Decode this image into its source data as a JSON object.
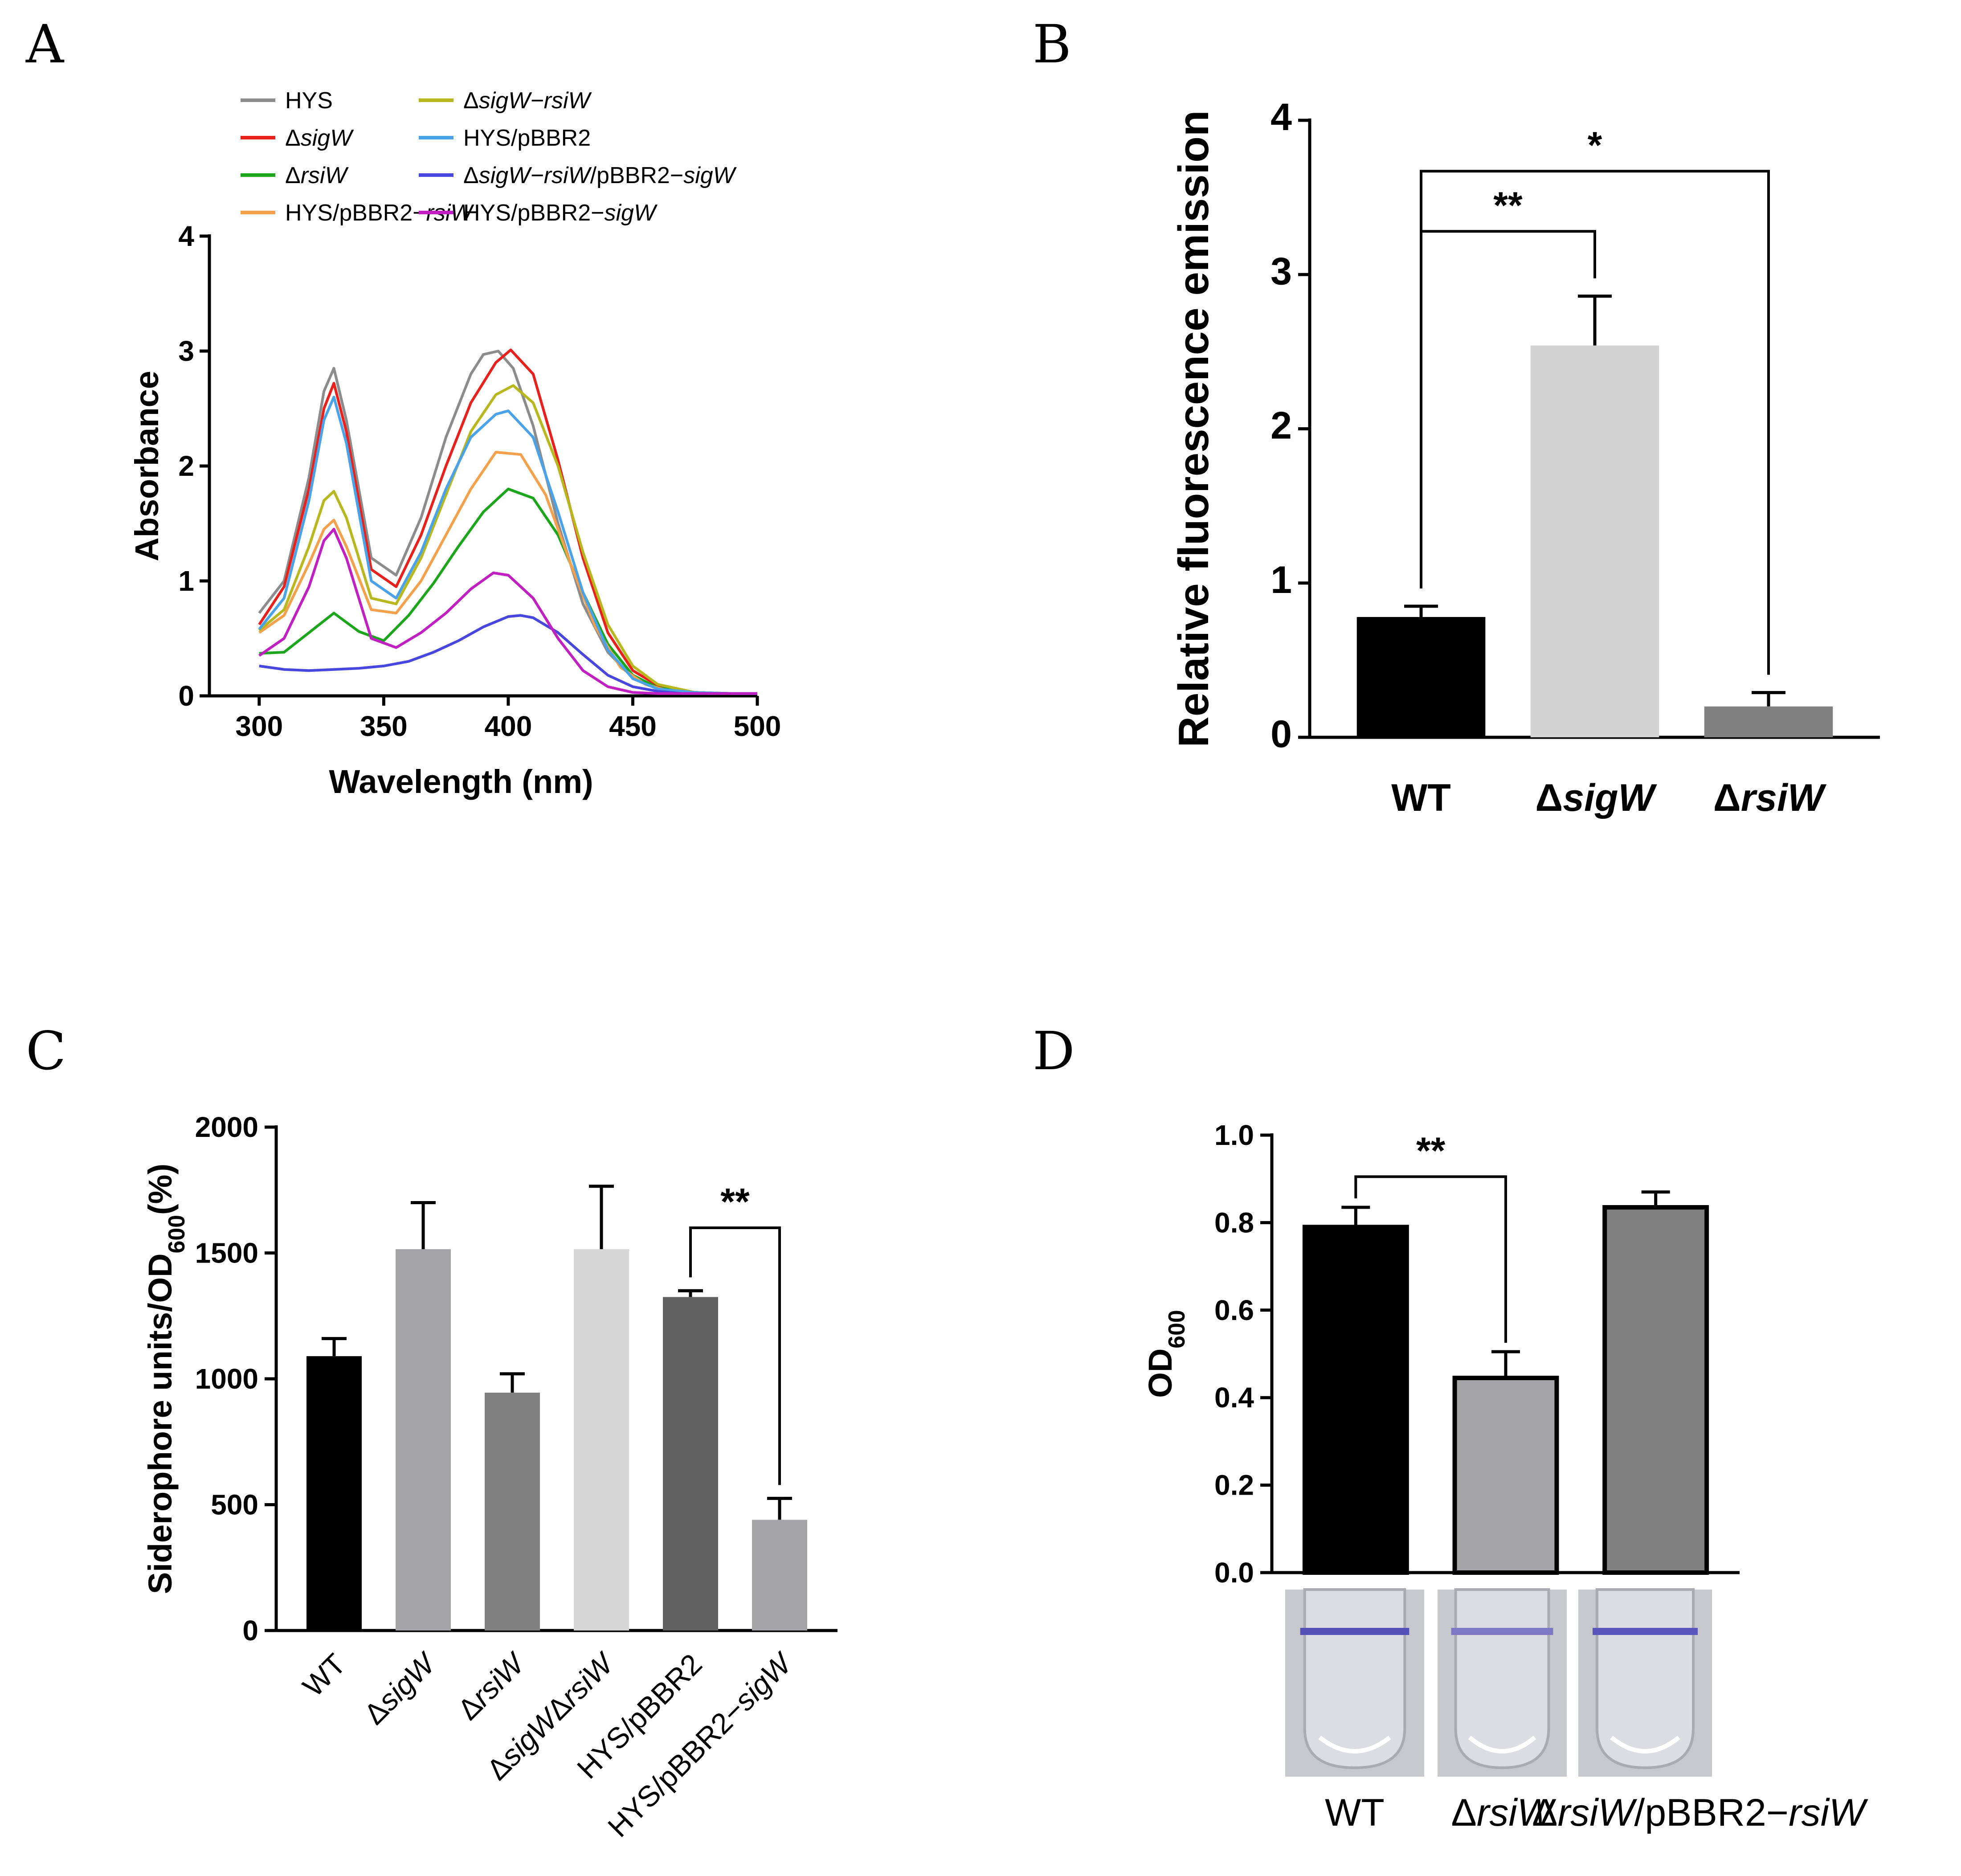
{
  "panels": {
    "A": {
      "label": "A"
    },
    "B": {
      "label": "B"
    },
    "C": {
      "label": "C"
    },
    "D": {
      "label": "D"
    }
  },
  "chart_data": [
    {
      "panel": "A",
      "type": "line",
      "title": "",
      "xlabel": "Wavelength (nm)",
      "ylabel": "Absorbance",
      "xlim": [
        280,
        500
      ],
      "ylim": [
        0,
        4
      ],
      "xticks": [
        300,
        350,
        400,
        450,
        500
      ],
      "yticks": [
        0,
        1,
        2,
        3,
        4
      ],
      "legend_position": "top",
      "series": [
        {
          "name": "HYS",
          "name_parts": [
            {
              "t": "HYS",
              "i": false
            }
          ],
          "color": "#8c8c8c",
          "x": [
            300,
            310,
            320,
            326,
            330,
            335,
            345,
            355,
            365,
            375,
            385,
            390,
            396,
            402,
            410,
            420,
            430,
            440,
            450,
            460,
            475,
            490,
            500
          ],
          "y": [
            0.72,
            1.0,
            1.9,
            2.65,
            2.85,
            2.4,
            1.2,
            1.05,
            1.55,
            2.25,
            2.8,
            2.97,
            3.0,
            2.85,
            2.35,
            1.5,
            0.8,
            0.38,
            0.16,
            0.07,
            0.03,
            0.02,
            0.02
          ]
        },
        {
          "name": "ΔsigW",
          "name_parts": [
            {
              "t": "Δ",
              "i": false
            },
            {
              "t": "sigW",
              "i": true
            }
          ],
          "color": "#e8211d",
          "x": [
            300,
            310,
            320,
            326,
            330,
            335,
            345,
            355,
            365,
            375,
            385,
            395,
            401,
            410,
            420,
            430,
            440,
            450,
            460,
            475,
            490,
            500
          ],
          "y": [
            0.62,
            0.95,
            1.8,
            2.5,
            2.72,
            2.3,
            1.1,
            0.95,
            1.4,
            2.0,
            2.55,
            2.9,
            3.01,
            2.8,
            2.05,
            1.2,
            0.55,
            0.22,
            0.09,
            0.03,
            0.02,
            0.02
          ]
        },
        {
          "name": "ΔrsiW",
          "name_parts": [
            {
              "t": "Δ",
              "i": false
            },
            {
              "t": "rsiW",
              "i": true
            }
          ],
          "color": "#1ba61b",
          "x": [
            300,
            310,
            320,
            330,
            340,
            350,
            360,
            370,
            380,
            390,
            400,
            410,
            420,
            430,
            440,
            450,
            460,
            475,
            490,
            500
          ],
          "y": [
            0.37,
            0.38,
            0.55,
            0.72,
            0.56,
            0.48,
            0.7,
            0.98,
            1.3,
            1.6,
            1.8,
            1.72,
            1.4,
            0.9,
            0.45,
            0.18,
            0.07,
            0.03,
            0.02,
            0.02
          ]
        },
        {
          "name": "HYS/pBBR2-rsiW",
          "name_parts": [
            {
              "t": "HYS/pBBR2−",
              "i": false
            },
            {
              "t": "rsiW",
              "i": true
            }
          ],
          "color": "#f5a04a",
          "x": [
            300,
            310,
            320,
            326,
            330,
            335,
            345,
            355,
            365,
            375,
            385,
            395,
            405,
            415,
            425,
            435,
            445,
            455,
            465,
            480,
            500
          ],
          "y": [
            0.55,
            0.7,
            1.15,
            1.45,
            1.53,
            1.3,
            0.75,
            0.72,
            1.0,
            1.4,
            1.8,
            2.12,
            2.1,
            1.75,
            1.15,
            0.6,
            0.25,
            0.1,
            0.04,
            0.02,
            0.02
          ]
        },
        {
          "name": "ΔsigW-rsiW",
          "name_parts": [
            {
              "t": "Δ",
              "i": false
            },
            {
              "t": "sigW−rsiW",
              "i": true
            }
          ],
          "color": "#b8b81e",
          "x": [
            300,
            310,
            320,
            326,
            330,
            335,
            345,
            355,
            365,
            375,
            385,
            395,
            402,
            410,
            420,
            430,
            440,
            450,
            460,
            475,
            490,
            500
          ],
          "y": [
            0.57,
            0.75,
            1.3,
            1.7,
            1.78,
            1.55,
            0.85,
            0.8,
            1.2,
            1.75,
            2.3,
            2.62,
            2.7,
            2.55,
            2.0,
            1.25,
            0.62,
            0.26,
            0.1,
            0.03,
            0.02,
            0.02
          ]
        },
        {
          "name": "HYS/pBBR2",
          "name_parts": [
            {
              "t": "HYS/pBBR2",
              "i": false
            }
          ],
          "color": "#4aa3e8",
          "x": [
            300,
            310,
            320,
            326,
            330,
            335,
            345,
            355,
            365,
            375,
            385,
            395,
            400,
            410,
            420,
            430,
            440,
            450,
            460,
            475,
            490,
            500
          ],
          "y": [
            0.58,
            0.85,
            1.7,
            2.4,
            2.6,
            2.2,
            1.0,
            0.85,
            1.25,
            1.8,
            2.25,
            2.45,
            2.48,
            2.25,
            1.6,
            0.9,
            0.4,
            0.15,
            0.06,
            0.03,
            0.02,
            0.02
          ]
        },
        {
          "name": "ΔsigW-rsiW/pBBR2-sigW",
          "name_parts": [
            {
              "t": "Δ",
              "i": false
            },
            {
              "t": "sigW−rsiW",
              "i": true
            },
            {
              "t": "/pBBR2−",
              "i": false
            },
            {
              "t": "sigW",
              "i": true
            }
          ],
          "color": "#4747e0",
          "x": [
            300,
            310,
            320,
            330,
            340,
            350,
            360,
            370,
            380,
            390,
            400,
            405,
            410,
            420,
            430,
            440,
            450,
            460,
            470,
            480,
            490,
            500
          ],
          "y": [
            0.26,
            0.23,
            0.22,
            0.23,
            0.24,
            0.26,
            0.3,
            0.38,
            0.48,
            0.6,
            0.69,
            0.7,
            0.68,
            0.55,
            0.36,
            0.18,
            0.08,
            0.04,
            0.02,
            0.02,
            0.02,
            0.02
          ]
        },
        {
          "name": "HYS/pBBR2-sigW",
          "name_parts": [
            {
              "t": "HYS/pBBR2−",
              "i": false
            },
            {
              "t": "sigW",
              "i": true
            }
          ],
          "color": "#c21fc2",
          "x": [
            300,
            310,
            320,
            326,
            330,
            335,
            345,
            355,
            365,
            375,
            385,
            394,
            400,
            410,
            420,
            430,
            440,
            450,
            460,
            475,
            490,
            500
          ],
          "y": [
            0.35,
            0.5,
            0.95,
            1.35,
            1.45,
            1.2,
            0.5,
            0.42,
            0.55,
            0.72,
            0.93,
            1.07,
            1.05,
            0.85,
            0.5,
            0.22,
            0.08,
            0.03,
            0.02,
            0.02,
            0.02,
            0.02
          ]
        }
      ]
    },
    {
      "panel": "B",
      "type": "bar",
      "ylabel": "Relative fluorescence emission",
      "ylim": [
        0,
        4
      ],
      "yticks": [
        0,
        1,
        2,
        3,
        4
      ],
      "categories": [
        "WT",
        "ΔsigW",
        "ΔrsiW"
      ],
      "category_parts": [
        [
          {
            "t": "WT",
            "i": false
          }
        ],
        [
          {
            "t": "Δ",
            "i": false
          },
          {
            "t": "sigW",
            "i": true
          }
        ],
        [
          {
            "t": "Δ",
            "i": false
          },
          {
            "t": "rsiW",
            "i": true
          }
        ]
      ],
      "values": [
        0.78,
        2.54,
        0.2
      ],
      "errors": [
        0.07,
        0.32,
        0.09
      ],
      "colors": [
        "#000000",
        "#d3d3d3",
        "#808080"
      ],
      "significance": [
        {
          "from": 0,
          "to": 1,
          "label": "**"
        },
        {
          "from": 0,
          "to": 2,
          "label": "*"
        }
      ]
    },
    {
      "panel": "C",
      "type": "bar",
      "ylabel_parts": [
        {
          "t": "Siderophore units/OD",
          "sub": false
        },
        {
          "t": "600",
          "sub": true
        },
        {
          "t": "(%)",
          "sub": false
        }
      ],
      "ylim": [
        0,
        2000
      ],
      "yticks": [
        0,
        500,
        1000,
        1500,
        2000
      ],
      "categories": [
        "WT",
        "ΔsigW",
        "ΔrsiW",
        "ΔsigWΔrsiW",
        "HYS/pBBR2",
        "HYS/pBBR2-sigW"
      ],
      "category_parts": [
        [
          {
            "t": "WT",
            "i": false
          }
        ],
        [
          {
            "t": "Δ",
            "i": false
          },
          {
            "t": "sigW",
            "i": true
          }
        ],
        [
          {
            "t": "Δ",
            "i": false
          },
          {
            "t": "rsiW",
            "i": true
          }
        ],
        [
          {
            "t": "Δ",
            "i": false
          },
          {
            "t": "sigW",
            "i": true
          },
          {
            "t": "Δ",
            "i": false
          },
          {
            "t": "rsiW",
            "i": true
          }
        ],
        [
          {
            "t": "HYS/pBBR2",
            "i": false
          }
        ],
        [
          {
            "t": "HYS/pBBR2−",
            "i": false
          },
          {
            "t": "sigW",
            "i": true
          }
        ]
      ],
      "values": [
        1090,
        1515,
        945,
        1515,
        1325,
        440
      ],
      "errors": [
        70,
        185,
        75,
        250,
        25,
        85
      ],
      "colors": [
        "#000000",
        "#a3a3a8",
        "#808080",
        "#d6d6d6",
        "#606060",
        "#a3a3a8"
      ],
      "significance": [
        {
          "from": 4,
          "to": 5,
          "label": "**"
        }
      ]
    },
    {
      "panel": "D",
      "type": "bar",
      "ylabel_parts": [
        {
          "t": "OD",
          "sub": false
        },
        {
          "t": "600",
          "sub": true
        }
      ],
      "ylim": [
        0,
        1.0
      ],
      "yticks": [
        0.0,
        0.2,
        0.4,
        0.6,
        0.8,
        1.0
      ],
      "ytick_labels": [
        "0.0",
        "0.2",
        "0.4",
        "0.6",
        "0.8",
        "1.0"
      ],
      "categories": [
        "WT",
        "ΔrsiW",
        "ΔrsiW/pBBR2-rsiW"
      ],
      "category_parts": [
        [
          {
            "t": "WT",
            "i": false
          }
        ],
        [
          {
            "t": "Δ",
            "i": false
          },
          {
            "t": "rsiW",
            "i": true
          }
        ],
        [
          {
            "t": "Δ",
            "i": false
          },
          {
            "t": "rsiW",
            "i": true
          },
          {
            "t": "/pBBR2−",
            "i": false
          },
          {
            "t": "rsiW",
            "i": true
          }
        ]
      ],
      "values": [
        0.79,
        0.445,
        0.835
      ],
      "errors": [
        0.045,
        0.06,
        0.035
      ],
      "colors": [
        "#000000",
        "#a3a3a8",
        "#808080"
      ],
      "significance": [
        {
          "from": 0,
          "to": 1,
          "label": "**"
        }
      ]
    }
  ]
}
